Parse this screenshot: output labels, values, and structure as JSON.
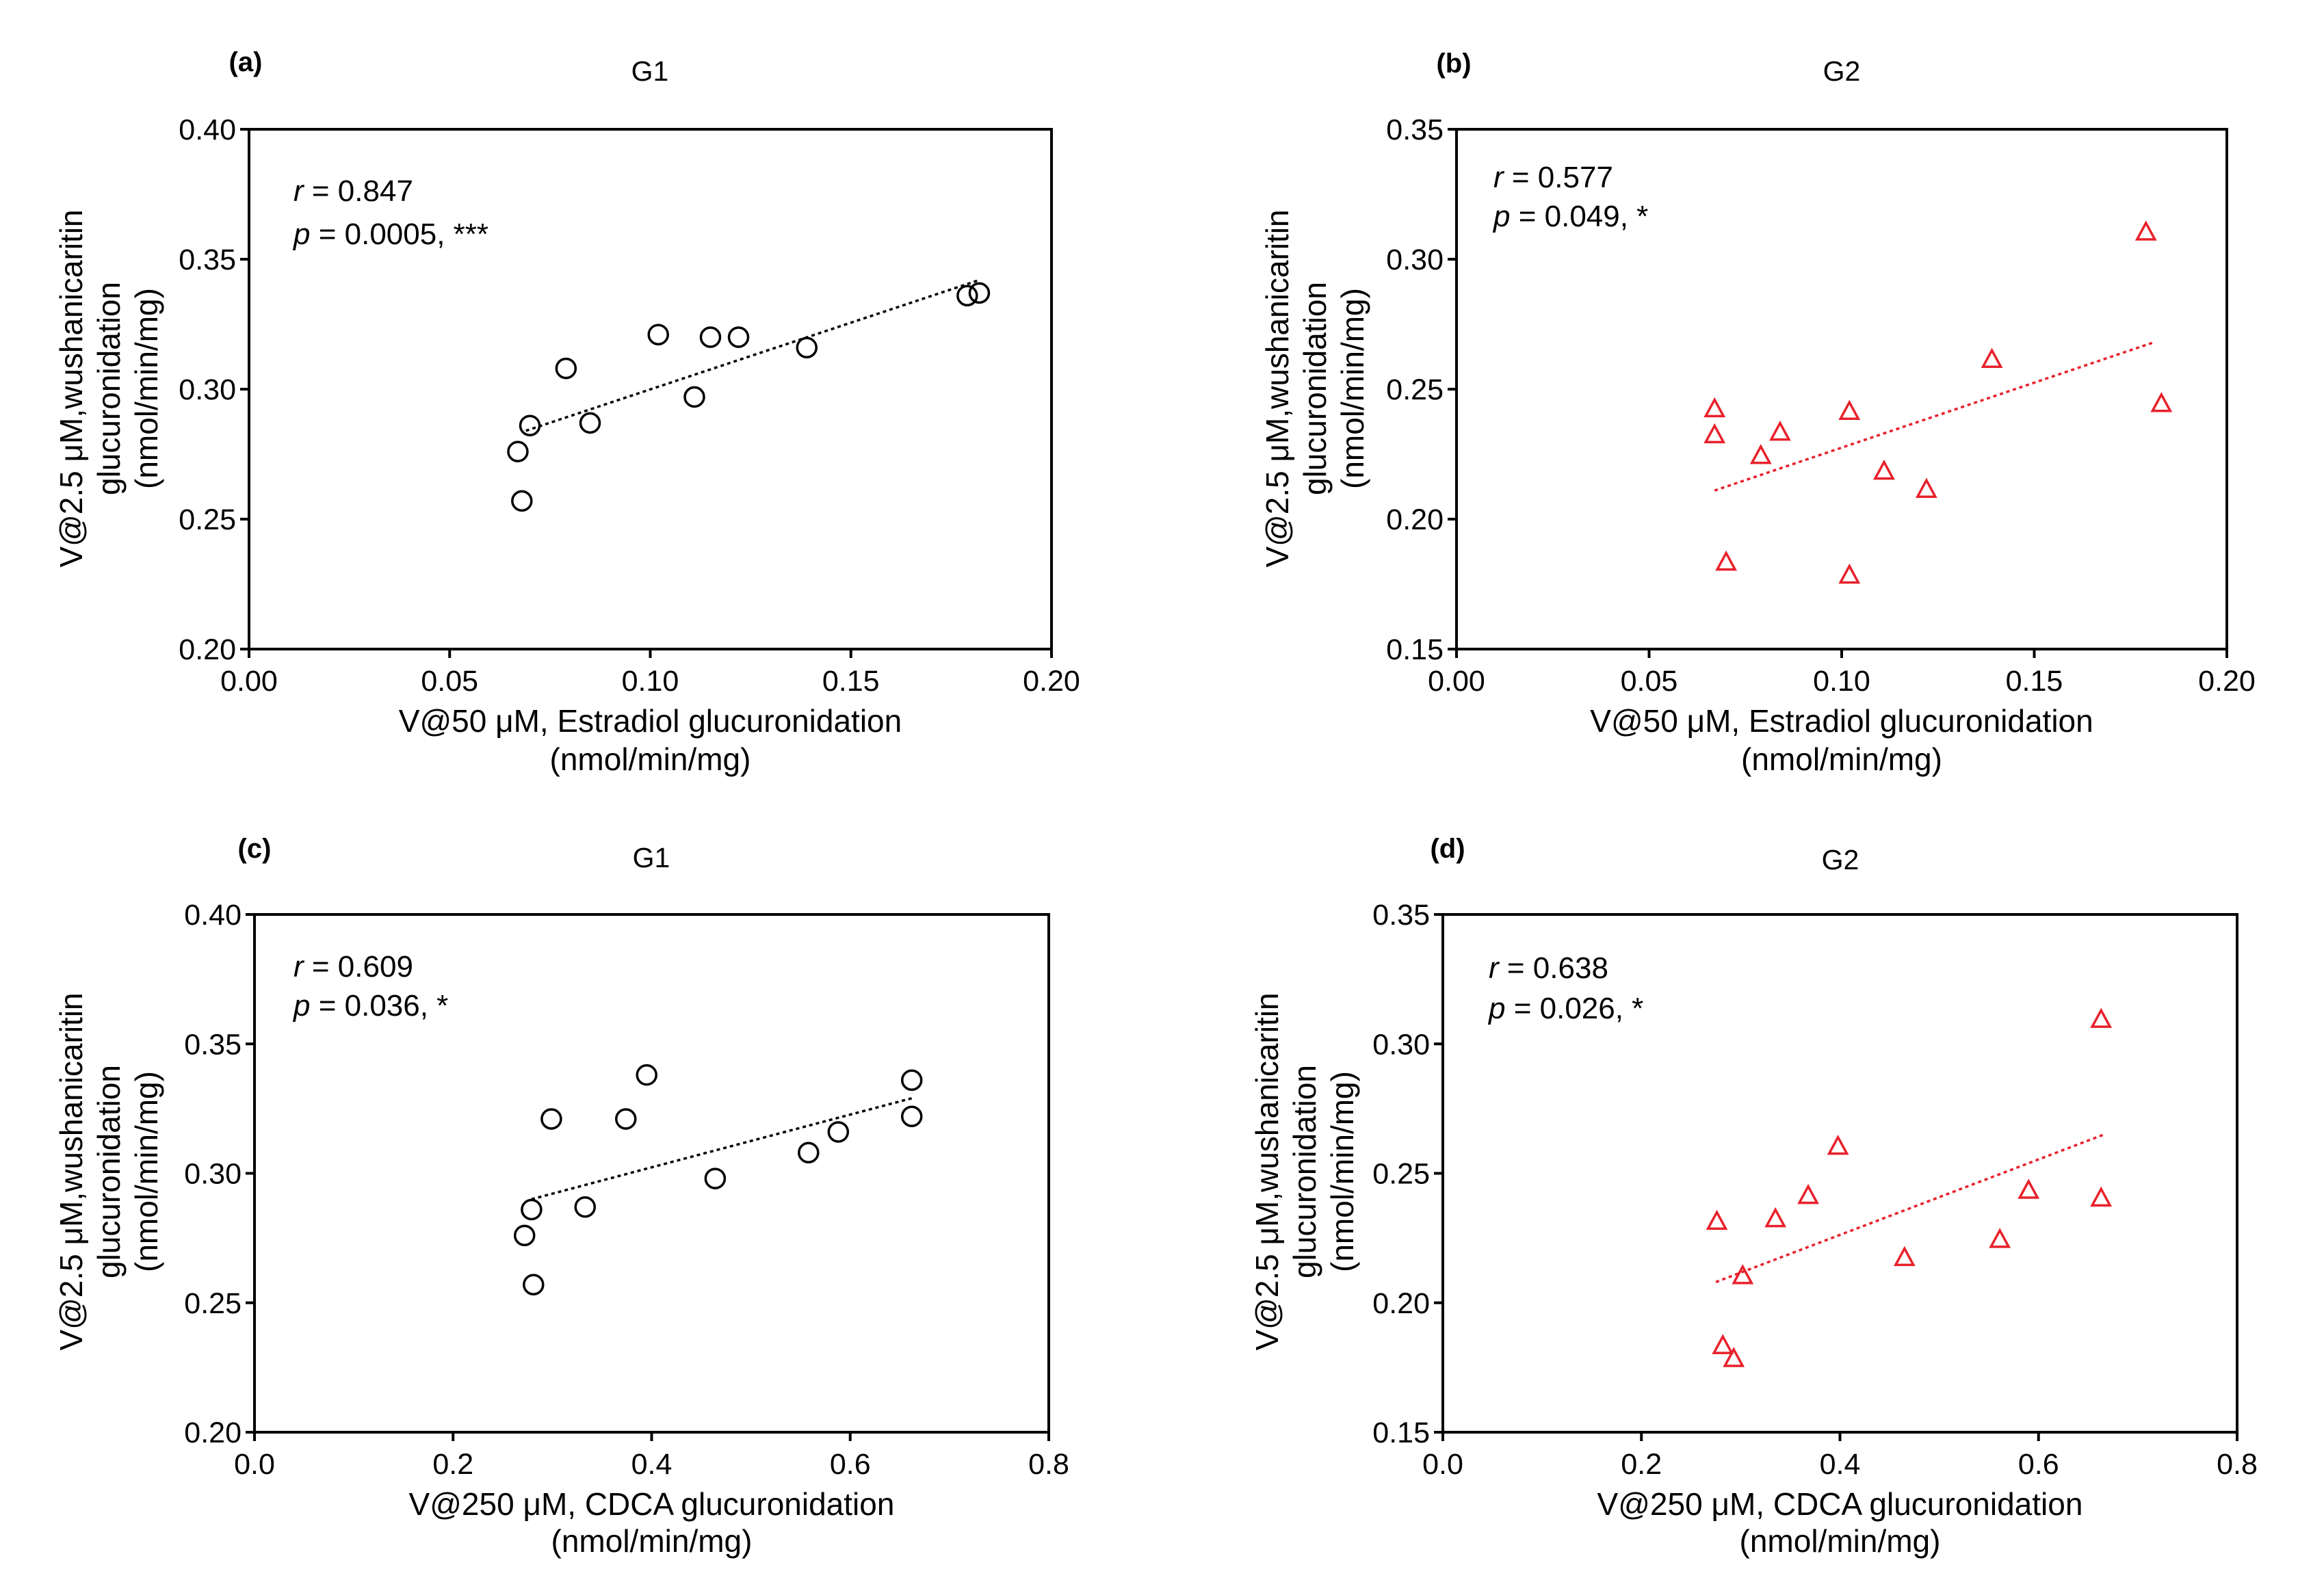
{
  "chart_data": [
    {
      "panel_label": "(a)",
      "type": "scatter",
      "title": "G1",
      "xlabel": [
        "V@50 μM, Estradiol glucuronidation",
        "(nmol/min/mg)"
      ],
      "ylabel": [
        "V@2.5 μM,wushanicaritin",
        "glucuronidation",
        "(nmol/min/mg)"
      ],
      "xlim": [
        0,
        0.2
      ],
      "ylim": [
        0.2,
        0.4
      ],
      "xticks": [
        "0.00",
        "0.05",
        "0.10",
        "0.15",
        "0.20"
      ],
      "yticks": [
        "0.20",
        "0.25",
        "0.30",
        "0.35",
        "0.40"
      ],
      "grid": false,
      "annotations": [
        {
          "symbol": "r",
          "text": " = 0.847"
        },
        {
          "symbol": "p",
          "text": " = 0.0005, ***"
        }
      ],
      "series": [
        {
          "marker": "circle",
          "color": "#000000",
          "x": [
            0.067,
            0.068,
            0.07,
            0.079,
            0.085,
            0.102,
            0.111,
            0.115,
            0.122,
            0.139,
            0.179,
            0.182
          ],
          "y": [
            0.276,
            0.257,
            0.286,
            0.308,
            0.287,
            0.321,
            0.297,
            0.32,
            0.32,
            0.316,
            0.336,
            0.337
          ],
          "trendline": {
            "style": "dotted",
            "x": [
              0.069,
              0.182
            ],
            "y": [
              0.284,
              0.342
            ]
          }
        }
      ]
    },
    {
      "panel_label": "(b)",
      "type": "scatter",
      "title": "G2",
      "xlabel": [
        "V@50 μM, Estradiol glucuronidation",
        "(nmol/min/mg)"
      ],
      "ylabel": [
        "V@2.5 μM,wushanicaritin",
        "glucuronidation",
        "(nmol/min/mg)"
      ],
      "xlim": [
        0,
        0.2
      ],
      "ylim": [
        0.15,
        0.35
      ],
      "xticks": [
        "0.00",
        "0.05",
        "0.10",
        "0.15",
        "0.20"
      ],
      "yticks": [
        "0.15",
        "0.20",
        "0.25",
        "0.30",
        "0.35"
      ],
      "grid": false,
      "annotations": [
        {
          "symbol": "r",
          "text": " = 0.577"
        },
        {
          "symbol": "p",
          "text": " = 0.049, *"
        }
      ],
      "series": [
        {
          "marker": "triangle",
          "color": "#e8212b",
          "x": [
            0.067,
            0.067,
            0.07,
            0.079,
            0.084,
            0.102,
            0.102,
            0.111,
            0.122,
            0.139,
            0.179,
            0.183
          ],
          "y": [
            0.232,
            0.242,
            0.183,
            0.224,
            0.233,
            0.241,
            0.178,
            0.218,
            0.211,
            0.261,
            0.31,
            0.244
          ],
          "trendline": {
            "style": "dotted",
            "x": [
              0.067,
              0.181
            ],
            "y": [
              0.211,
              0.268
            ]
          }
        }
      ]
    },
    {
      "panel_label": "(c)",
      "type": "scatter",
      "title": "G1",
      "xlabel": [
        "V@250 μM, CDCA glucuronidation",
        "(nmol/min/mg)"
      ],
      "ylabel": [
        "V@2.5 μM,wushanicaritin",
        "glucuronidation",
        "(nmol/min/mg)"
      ],
      "xlim": [
        0,
        0.8
      ],
      "ylim": [
        0.2,
        0.4
      ],
      "xticks": [
        "0.0",
        "0.2",
        "0.4",
        "0.6",
        "0.8"
      ],
      "yticks": [
        "0.20",
        "0.25",
        "0.30",
        "0.35",
        "0.40"
      ],
      "grid": false,
      "annotations": [
        {
          "symbol": "r",
          "text": " = 0.609"
        },
        {
          "symbol": "p",
          "text": " = 0.036, *"
        }
      ],
      "series": [
        {
          "marker": "circle",
          "color": "#000000",
          "x": [
            0.272,
            0.279,
            0.281,
            0.299,
            0.333,
            0.374,
            0.395,
            0.464,
            0.558,
            0.588,
            0.662,
            0.662
          ],
          "y": [
            0.276,
            0.286,
            0.257,
            0.321,
            0.287,
            0.321,
            0.338,
            0.298,
            0.308,
            0.316,
            0.336,
            0.322
          ],
          "trendline": {
            "style": "dotted",
            "x": [
              0.279,
              0.662
            ],
            "y": [
              0.29,
              0.329
            ]
          }
        }
      ]
    },
    {
      "panel_label": "(d)",
      "type": "scatter",
      "title": "G2",
      "xlabel": [
        "V@250 μM, CDCA glucuronidation",
        "(nmol/min/mg)"
      ],
      "ylabel": [
        "V@2.5 μM,wushanicaritin",
        "glucuronidation",
        "(nmol/min/mg)"
      ],
      "xlim": [
        0,
        0.8
      ],
      "ylim": [
        0.15,
        0.35
      ],
      "xticks": [
        "0.0",
        "0.2",
        "0.4",
        "0.6",
        "0.8"
      ],
      "yticks": [
        "0.15",
        "0.20",
        "0.25",
        "0.30",
        "0.35"
      ],
      "grid": false,
      "annotations": [
        {
          "symbol": "r",
          "text": " = 0.638"
        },
        {
          "symbol": "p",
          "text": " = 0.026, *"
        }
      ],
      "series": [
        {
          "marker": "triangle",
          "color": "#e8212b",
          "x": [
            0.276,
            0.282,
            0.293,
            0.302,
            0.335,
            0.368,
            0.398,
            0.465,
            0.561,
            0.59,
            0.663,
            0.663
          ],
          "y": [
            0.231,
            0.183,
            0.178,
            0.21,
            0.232,
            0.241,
            0.26,
            0.217,
            0.224,
            0.243,
            0.309,
            0.24
          ],
          "trendline": {
            "style": "dotted",
            "x": [
              0.275,
              0.666
            ],
            "y": [
              0.208,
              0.265
            ]
          }
        }
      ]
    }
  ]
}
